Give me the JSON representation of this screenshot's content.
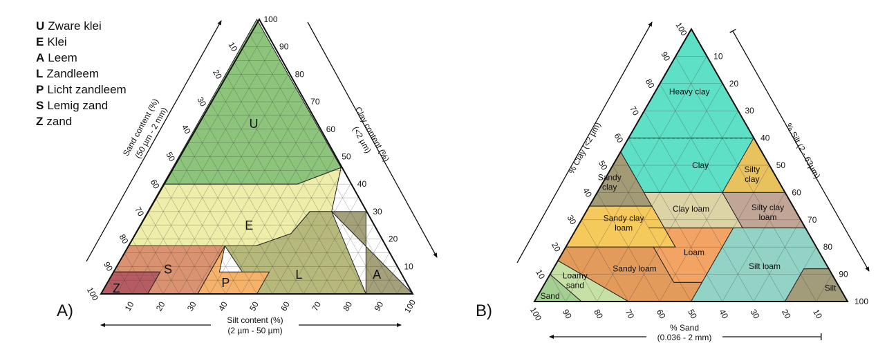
{
  "legend": [
    {
      "code": "U",
      "label": "Zware klei"
    },
    {
      "code": "E",
      "label": "Klei"
    },
    {
      "code": "A",
      "label": "Leem"
    },
    {
      "code": "L",
      "label": "Zandleem"
    },
    {
      "code": "P",
      "label": "Licht zandleem"
    },
    {
      "code": "S",
      "label": "Lemig zand"
    },
    {
      "code": "Z",
      "label": "zand"
    }
  ],
  "panel_a": {
    "label": "A)",
    "axis_left": {
      "line1": "Sand content (%)",
      "line2": "(50 µm - 2 mm)"
    },
    "axis_right": {
      "line1": "Clay content (%)",
      "line2": "(<2 µm)"
    },
    "axis_bottom": {
      "line1": "Silt content (%)",
      "line2": "(2 µm - 50 µm)"
    },
    "ticks_clay": [
      "10",
      "20",
      "30",
      "40",
      "50",
      "60",
      "70",
      "80",
      "90",
      "100"
    ],
    "ticks_sand": [
      "10",
      "20",
      "30",
      "40",
      "50",
      "60",
      "70",
      "80",
      "90",
      "100"
    ],
    "ticks_silt": [
      "10",
      "20",
      "30",
      "40",
      "50",
      "60",
      "70",
      "80",
      "90",
      "100"
    ],
    "zones": {
      "U": "U",
      "E": "E",
      "A": "A",
      "L": "L",
      "P": "P",
      "S": "S",
      "Z": "Z"
    },
    "colors": {
      "U": "#8cc47c",
      "E": "#eeedaa",
      "A": "#a3a07a",
      "L": "#b7b97c",
      "P": "#f4b26a",
      "S": "#d99371",
      "Z": "#b55c63"
    }
  },
  "panel_b": {
    "label": "B)",
    "axis_left": "% Clay (<2 µm)",
    "axis_right": "% Silt (2 - 63µm)",
    "axis_bottom": {
      "line1": "% Sand",
      "line2": "(0.036 - 2 mm)"
    },
    "ticks_clay": [
      "10",
      "20",
      "30",
      "40",
      "50",
      "60",
      "70",
      "80",
      "90",
      "100"
    ],
    "ticks_silt": [
      "10",
      "20",
      "30",
      "40",
      "50",
      "60",
      "70",
      "80",
      "90",
      "100"
    ],
    "ticks_sand": [
      "100",
      "90",
      "80",
      "70",
      "60",
      "50",
      "40",
      "30",
      "20",
      "10"
    ],
    "classes": {
      "heavy_clay": "Heavy clay",
      "clay": "Clay",
      "silty_clay": [
        "Silty",
        "clay"
      ],
      "sandy_clay": [
        "Sandy",
        "clay"
      ],
      "clay_loam": "Clay loam",
      "silty_clay_loam": [
        "Silty clay",
        "loam"
      ],
      "sandy_clay_loam": [
        "Sandy clay",
        "loam"
      ],
      "loam": "Loam",
      "silt_loam": "Silt loam",
      "sandy_loam": "Sandy loam",
      "loamy_sand": [
        "Loamy",
        "sand"
      ],
      "sand": "Sand",
      "silt": "Silt"
    },
    "colors": {
      "heavy_clay": "#5ee0c6",
      "clay": "#5ee0c6",
      "silty_clay": "#e8c25c",
      "sandy_clay": "#a39a76",
      "clay_loam": "#dcd3a6",
      "silty_clay_loam": "#c2a695",
      "sandy_clay_loam": "#f5c95c",
      "loam": "#f3a363",
      "silt_loam": "#93d3c6",
      "sandy_loam": "#e39b5c",
      "loamy_sand": "#c6e0a6",
      "sand": "#a3cf92",
      "silt": "#a39c7a"
    }
  }
}
